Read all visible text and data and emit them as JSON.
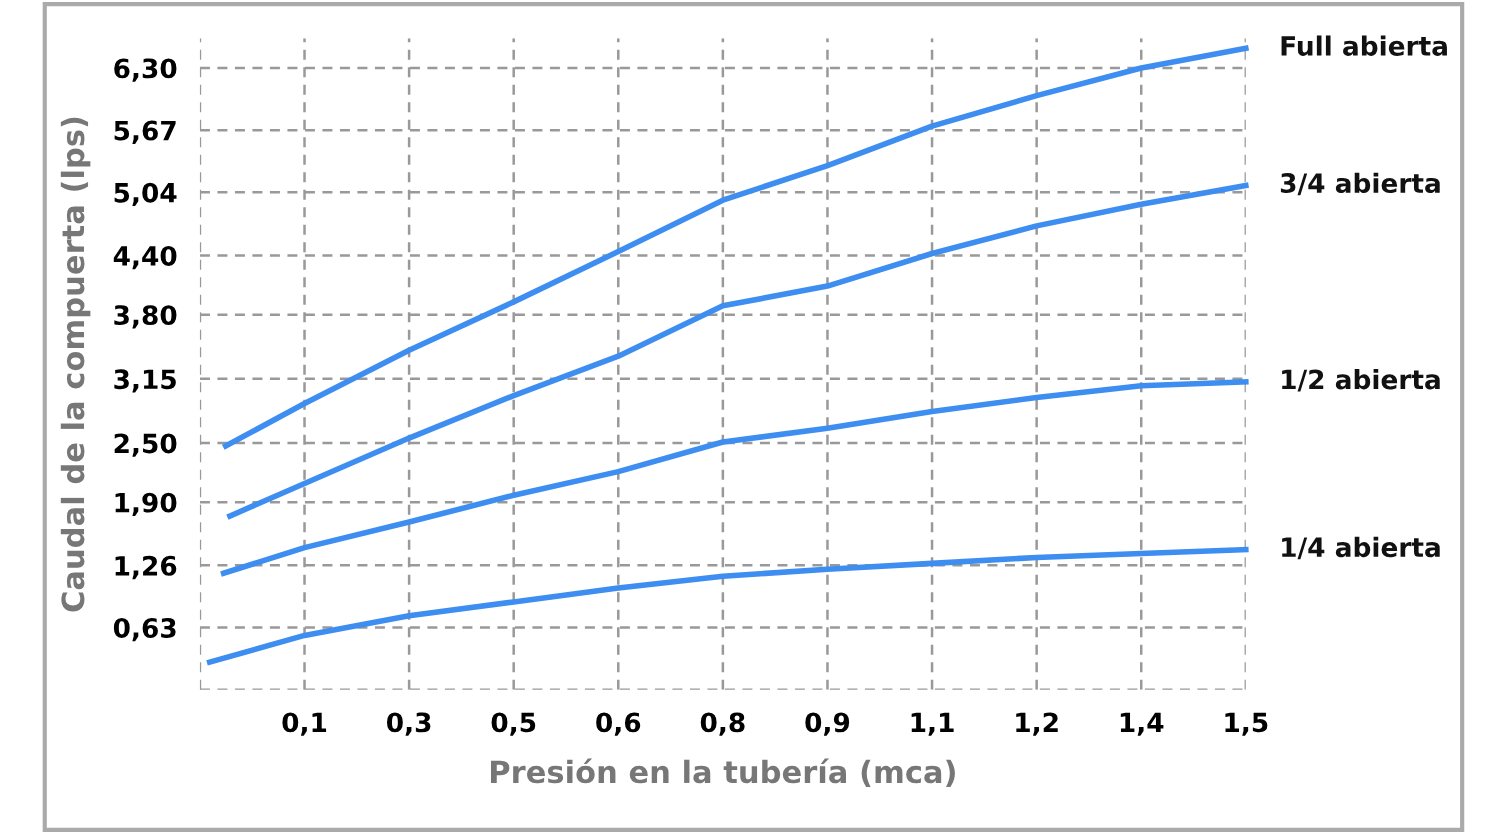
{
  "chart_data": {
    "type": "line",
    "xlabel": "Presión en la tubería (mca)",
    "ylabel": "Caudal de la compuerta (lps)",
    "xlim": [
      0,
      1.5
    ],
    "ylim": [
      0,
      6.6
    ],
    "xticks": [
      {
        "value": 0,
        "label": null
      },
      {
        "value": 0.15,
        "label": "0,1"
      },
      {
        "value": 0.3,
        "label": "0,3"
      },
      {
        "value": 0.45,
        "label": "0,5"
      },
      {
        "value": 0.6,
        "label": "0,6"
      },
      {
        "value": 0.75,
        "label": "0,8"
      },
      {
        "value": 0.9,
        "label": "0,9"
      },
      {
        "value": 1.05,
        "label": "1,1"
      },
      {
        "value": 1.2,
        "label": "1,2"
      },
      {
        "value": 1.35,
        "label": "1,4"
      },
      {
        "value": 1.5,
        "label": "1,5"
      }
    ],
    "yticks": [
      {
        "value": 0,
        "label": null
      },
      {
        "value": 0.63,
        "label": "0,63"
      },
      {
        "value": 1.26,
        "label": "1,26"
      },
      {
        "value": 1.9,
        "label": "1,90"
      },
      {
        "value": 2.5,
        "label": "2,50"
      },
      {
        "value": 3.15,
        "label": "3,15"
      },
      {
        "value": 3.8,
        "label": "3,80"
      },
      {
        "value": 4.4,
        "label": "4,40"
      },
      {
        "value": 5.04,
        "label": "5,04"
      },
      {
        "value": 5.67,
        "label": "5,67"
      },
      {
        "value": 6.3,
        "label": "6,30"
      }
    ],
    "grid": true,
    "line_style": "solid",
    "marker": "none",
    "legend": false,
    "series": [
      {
        "name": "Full abierta",
        "color": "#3d8ef0",
        "x": [
          0.037,
          0.15,
          0.3,
          0.45,
          0.6,
          0.75,
          0.9,
          1.05,
          1.2,
          1.35,
          1.5
        ],
        "values": [
          2.47,
          2.9,
          3.44,
          3.93,
          4.44,
          4.96,
          5.31,
          5.71,
          6.02,
          6.3,
          6.5
        ]
      },
      {
        "name": "3/4 abierta",
        "color": "#3d8ef0",
        "x": [
          0.043,
          0.15,
          0.3,
          0.45,
          0.6,
          0.75,
          0.9,
          1.05,
          1.2,
          1.35,
          1.5
        ],
        "values": [
          1.76,
          2.09,
          2.55,
          2.98,
          3.38,
          3.89,
          4.09,
          4.42,
          4.7,
          4.92,
          5.11
        ]
      },
      {
        "name": "1/2 abierta",
        "color": "#3d8ef0",
        "x": [
          0.034,
          0.15,
          0.3,
          0.45,
          0.6,
          0.75,
          0.9,
          1.05,
          1.2,
          1.35,
          1.5
        ],
        "values": [
          1.18,
          1.44,
          1.7,
          1.97,
          2.21,
          2.51,
          2.65,
          2.82,
          2.96,
          3.08,
          3.12
        ]
      },
      {
        "name": "1/4 abierta",
        "color": "#3d8ef0",
        "x": [
          0.014,
          0.15,
          0.3,
          0.45,
          0.6,
          0.75,
          0.9,
          1.05,
          1.2,
          1.35,
          1.5
        ],
        "values": [
          0.28,
          0.55,
          0.75,
          0.89,
          1.03,
          1.15,
          1.22,
          1.28,
          1.34,
          1.38,
          1.42
        ]
      }
    ]
  }
}
